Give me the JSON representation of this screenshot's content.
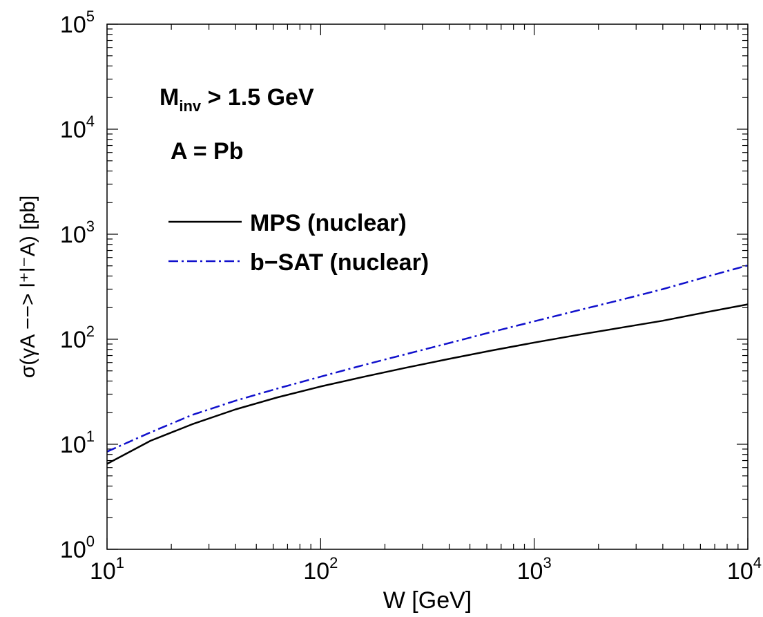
{
  "chart_data": {
    "type": "line",
    "xlabel": "W [GeV]",
    "ylabel": "σ(γA −−> l⁺l⁻A) [pb]",
    "xscale": "log",
    "yscale": "log",
    "xlim": [
      10,
      10000
    ],
    "ylim": [
      1,
      100000
    ],
    "grid": false,
    "legend_position": "upper-left",
    "x_ticks": [
      {
        "value": 10,
        "base": "10",
        "exp": "1"
      },
      {
        "value": 100,
        "base": "10",
        "exp": "2"
      },
      {
        "value": 1000,
        "base": "10",
        "exp": "3"
      },
      {
        "value": 10000,
        "base": "10",
        "exp": "4"
      }
    ],
    "y_ticks": [
      {
        "value": 1,
        "base": "10",
        "exp": "0"
      },
      {
        "value": 10,
        "base": "10",
        "exp": "1"
      },
      {
        "value": 100,
        "base": "10",
        "exp": "2"
      },
      {
        "value": 1000,
        "base": "10",
        "exp": "3"
      },
      {
        "value": 10000,
        "base": "10",
        "exp": "4"
      },
      {
        "value": 100000,
        "base": "10",
        "exp": "5"
      }
    ],
    "annotations": {
      "mass_cut": {
        "main": "M",
        "sub": "inv",
        "rest": " > 1.5 GeV"
      },
      "nucleus": "A = Pb"
    },
    "series": [
      {
        "name": "MPS (nuclear)",
        "color": "#000000",
        "style": "solid",
        "x": [
          10,
          16,
          25,
          40,
          63,
          100,
          160,
          250,
          400,
          630,
          1000,
          1600,
          2500,
          4000,
          6300,
          10000
        ],
        "y": [
          6.5,
          10.8,
          15.5,
          21.5,
          28,
          35.5,
          44,
          53.5,
          65,
          78,
          93,
          110,
          128,
          150,
          180,
          215
        ]
      },
      {
        "name": "b−SAT (nuclear)",
        "color": "#1010cc",
        "style": "dashdot",
        "x": [
          10,
          16,
          25,
          40,
          63,
          100,
          160,
          250,
          400,
          630,
          1000,
          1600,
          2500,
          4000,
          6300,
          10000
        ],
        "y": [
          8.5,
          13,
          19,
          26,
          34,
          44,
          57,
          72,
          92,
          117,
          148,
          188,
          235,
          300,
          390,
          505
        ]
      }
    ]
  }
}
